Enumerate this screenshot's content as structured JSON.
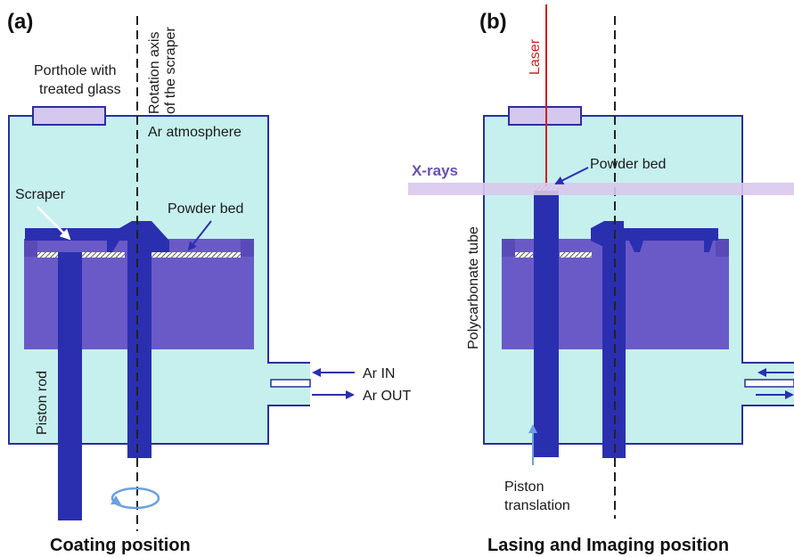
{
  "colors": {
    "chamber_fill": "#c6f0ee",
    "chamber_stroke": "#2a2f9e",
    "block": "#6a5ac8",
    "rod": "#2a2fb0",
    "porthole": "#d5c8ee",
    "xray_beam": "#d9c8ec",
    "laser": "#cc2222",
    "arrow": "#2a2fb0",
    "light_arrow": "#6aa0e0"
  },
  "panel_a": {
    "letter": "(a)",
    "porthole_label_line1": "Porthole with",
    "porthole_label_line2": "treated glass",
    "axis_label_line1": "Rotation axis",
    "axis_label_line2": "of the scraper",
    "atmosphere": "Ar atmosphere",
    "scraper": "Scraper",
    "powder_bed": "Powder bed",
    "piston_rod": "Piston rod",
    "ar_in": "Ar IN",
    "ar_out": "Ar OUT",
    "caption": "Coating position"
  },
  "panel_b": {
    "letter": "(b)",
    "laser": "Laser",
    "xrays": "X-rays",
    "powder_bed": "Powder bed",
    "tube": "Polycarbonate tube",
    "piston_line1": "Piston",
    "piston_line2": "translation",
    "caption": "Lasing and Imaging position"
  }
}
